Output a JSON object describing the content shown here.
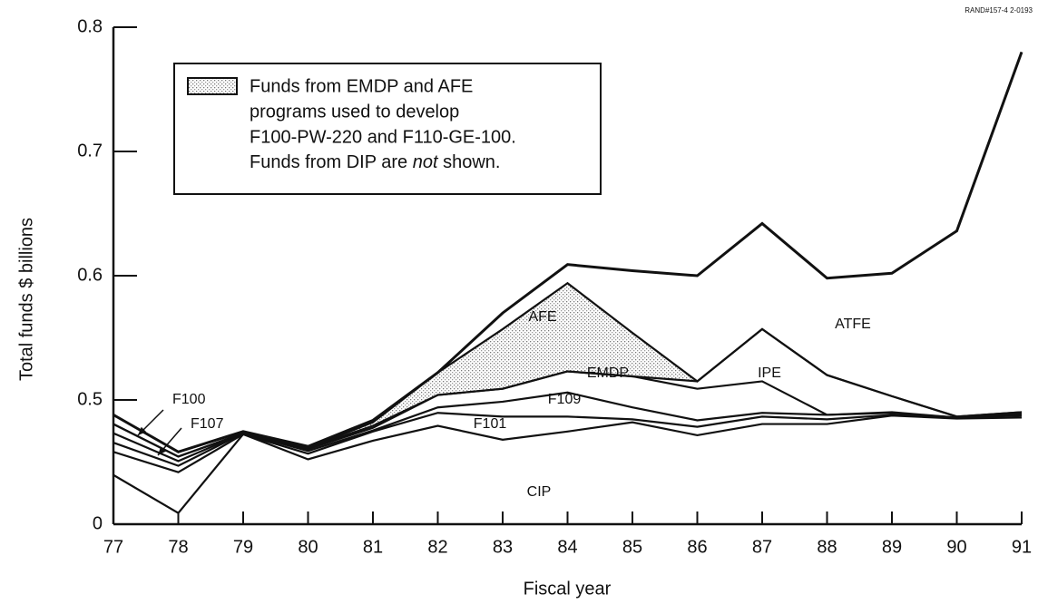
{
  "chart_data": {
    "type": "stacked_area",
    "source": "RAND#157-4 2-0193",
    "x_label": "Fiscal year",
    "y_label": "Total funds $ billions",
    "categories": [
      "77",
      "78",
      "79",
      "80",
      "81",
      "82",
      "83",
      "84",
      "85",
      "86",
      "87",
      "88",
      "89",
      "90",
      "91"
    ],
    "ylim": [
      0,
      0.8
    ],
    "yticks": [
      0,
      0.5,
      0.6,
      0.7,
      0.8
    ],
    "series": [
      {
        "name": "CIP",
        "color": "#ffffff",
        "values": [
          0.198,
          0.045,
          0.362,
          0.261,
          0.336,
          0.396,
          0.34,
          0.373,
          0.41,
          0.358,
          0.403,
          0.403,
          0.437,
          0.425,
          0.429
        ]
      },
      {
        "name": "F101",
        "color": "#ffffff",
        "values": [
          0.093,
          0.164,
          0,
          0.023,
          0.037,
          0.052,
          0.093,
          0.06,
          0.012,
          0.034,
          0.03,
          0.019,
          0.003,
          0.004,
          0.008
        ]
      },
      {
        "name": "F109",
        "color": "#ffffff",
        "values": [
          0.037,
          0.026,
          0.004,
          0.011,
          0.004,
          0.022,
          0.06,
          0.073,
          0.048,
          0.026,
          0.015,
          0.018,
          0.008,
          0,
          0.003
        ]
      },
      {
        "name": "EMDP",
        "color": "#ffffff",
        "values": [
          0.038,
          0.019,
          0,
          0.007,
          0.011,
          0.034,
          0.016,
          0.017,
          0.049,
          0.091,
          0.067,
          0,
          0.003,
          0,
          0.004
        ]
      },
      {
        "name": "IPE",
        "color": "#ffffff",
        "values": [
          0.037,
          0.018,
          0,
          0.004,
          0.008,
          0,
          0,
          0,
          0,
          0.006,
          0.042,
          0.08,
          0.052,
          0.004,
          0.007
        ]
      },
      {
        "name": "AFE",
        "color": "stipple",
        "values": [
          0,
          0,
          0,
          0,
          0.014,
          0.018,
          0.048,
          0.071,
          0.035,
          0,
          0,
          0,
          0,
          0,
          0
        ]
      },
      {
        "name": "ATFE",
        "color": "#ffffff",
        "values": [
          0.037,
          0.019,
          0.007,
          0.007,
          0.008,
          0,
          0.013,
          0.015,
          0.05,
          0.085,
          0.085,
          0.078,
          0.099,
          0.203,
          0.329
        ]
      }
    ],
    "annotations": [
      "F100",
      "F107"
    ],
    "legend_lines": [
      "Funds from EMDP and AFE",
      "programs used to develop",
      "F100-PW-220 and F110-GE-100."
    ],
    "legend_last": [
      "Funds from DIP are",
      "not",
      "shown."
    ]
  }
}
